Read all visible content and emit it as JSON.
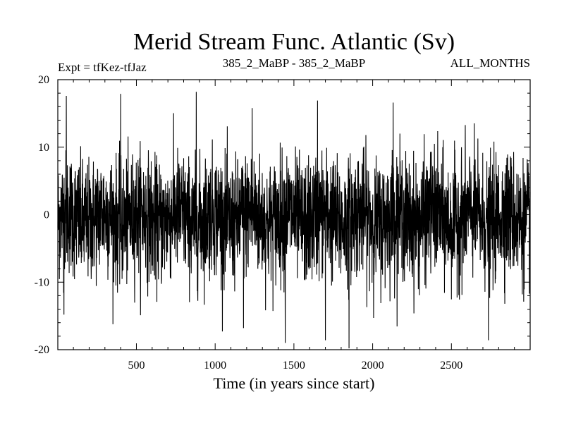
{
  "chart_data": {
    "type": "line",
    "title": "Merid Stream Func. Atlantic (Sv)",
    "subtitle_left": "Expt = tfKez-tfJaz",
    "subtitle_center": "385_2_MaBP - 385_2_MaBP",
    "subtitle_right": "ALL_MONTHS",
    "xlabel": "Time (in years since start)",
    "ylabel": "",
    "xlim": [
      1,
      3000
    ],
    "ylim": [
      -20,
      20
    ],
    "x_ticks": [
      500,
      1000,
      1500,
      2000,
      2500
    ],
    "y_ticks": [
      -20,
      -10,
      0,
      10,
      20
    ],
    "grid": false,
    "series": [
      {
        "color": "#000000",
        "x_start": 1,
        "x_step": 1,
        "n_points": 3000,
        "mean": -0.5,
        "std_dev": 5.5,
        "min": -19.8,
        "max": 18.2,
        "annotated_extremes": [
          {
            "x": 55,
            "y": 17.6
          },
          {
            "x": 400,
            "y": 17.9
          },
          {
            "x": 880,
            "y": 18.2
          },
          {
            "x": 1235,
            "y": 15.8
          },
          {
            "x": 1650,
            "y": 16.9
          },
          {
            "x": 2130,
            "y": 16.6
          },
          {
            "x": 1445,
            "y": -19.0
          },
          {
            "x": 1700,
            "y": -18.6
          },
          {
            "x": 1850,
            "y": -19.8
          },
          {
            "x": 2735,
            "y": -18.6
          },
          {
            "x": 40,
            "y": -14.8
          },
          {
            "x": 1180,
            "y": -16.8
          }
        ]
      }
    ]
  }
}
